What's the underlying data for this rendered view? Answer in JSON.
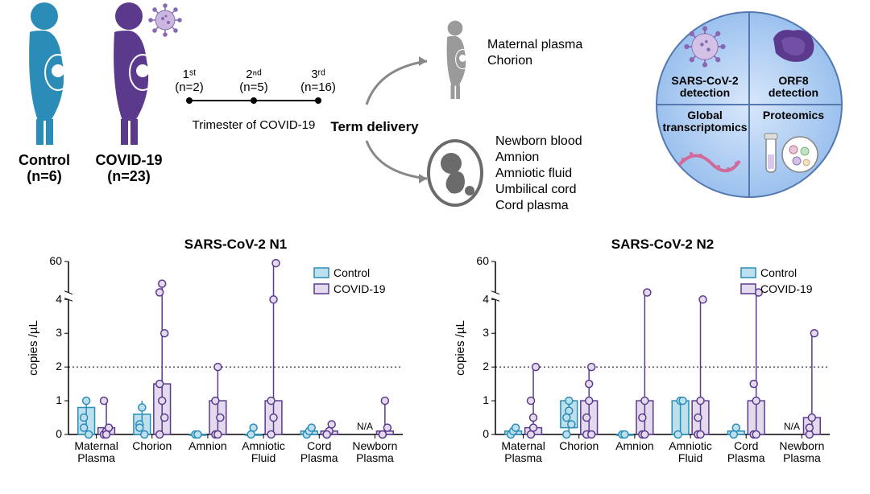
{
  "groups": {
    "control": {
      "label": "Control",
      "n": "(n=6)",
      "color": "#2b8db7"
    },
    "covid": {
      "label": "COVID-19",
      "n": "(n=23)",
      "color": "#5b3a8e"
    }
  },
  "timeline": {
    "label": "Trimester of COVID-19",
    "points": [
      {
        "top": "1ˢᵗ",
        "n": "(n=2)"
      },
      {
        "top": "2ⁿᵈ",
        "n": "(n=5)"
      },
      {
        "top": "3ʳᵈ",
        "n": "(n=16)"
      }
    ]
  },
  "term_delivery": "Term delivery",
  "maternal_list": [
    "Maternal plasma",
    "Chorion"
  ],
  "fetal_list": [
    "Newborn blood",
    "Amnion",
    "Amniotic fluid",
    "Umbilical cord",
    "Cord plasma"
  ],
  "quadrant": {
    "tl": "SARS-CoV-2\ndetection",
    "tr": "ORF8\ndetection",
    "bl": "Global\ntranscriptomics",
    "br": "Proteomics",
    "bg": "#c3d9f7",
    "bg2": "#a7c8f2",
    "stroke": "#5578b0"
  },
  "charts": {
    "ylabel": "copies /µL",
    "ytick_vals": [
      0,
      1,
      2,
      3,
      4
    ],
    "ytick_break": [
      4,
      60
    ],
    "threshold": 2,
    "categories": [
      "Maternal\nPlasma",
      "Chorion",
      "Amnion",
      "Amniotic\nFluid",
      "Cord\nPlasma",
      "Newborn\nPlasma"
    ],
    "legend": {
      "control": "Control",
      "covid": "COVID-19"
    },
    "control_fill": "#bde0ee",
    "control_stroke": "#2b8db7",
    "covid_fill": "#e3dbed",
    "covid_stroke": "#5b3a8e",
    "n1": {
      "title": "SARS-CoV-2 N1",
      "na_index": 5,
      "series": [
        {
          "group": "control",
          "box": [
            0,
            0.8
          ],
          "whisker": [
            0,
            1
          ],
          "points": [
            0.5,
            1,
            0,
            0.2
          ]
        },
        {
          "group": "covid",
          "box": [
            0,
            0.2
          ],
          "whisker": [
            0,
            1
          ],
          "points": [
            0,
            0.1,
            0.2,
            1,
            0
          ]
        },
        {
          "group": "control",
          "box": [
            0,
            0.6
          ],
          "whisker": [
            0,
            1
          ],
          "points": [
            0.3,
            0.8,
            0,
            0.2
          ]
        },
        {
          "group": "covid",
          "box": [
            0,
            1.5
          ],
          "whisker": [
            0,
            20
          ],
          "points": [
            0,
            1,
            3,
            4.5,
            20,
            0.5,
            1.5
          ]
        },
        {
          "group": "control",
          "box": [
            0,
            0
          ],
          "whisker": [
            0,
            0
          ],
          "points": [
            0,
            0
          ]
        },
        {
          "group": "covid",
          "box": [
            0,
            1
          ],
          "whisker": [
            0,
            2
          ],
          "points": [
            0,
            2,
            0.5,
            1,
            0
          ]
        },
        {
          "group": "control",
          "box": [
            0,
            0
          ],
          "whisker": [
            0,
            0
          ],
          "points": [
            0,
            0.2
          ]
        },
        {
          "group": "covid",
          "box": [
            0,
            1
          ],
          "whisker": [
            0,
            57
          ],
          "points": [
            0,
            4,
            57,
            1,
            0.5
          ]
        },
        {
          "group": "control",
          "box": [
            0,
            0.1
          ],
          "whisker": [
            0,
            0.2
          ],
          "points": [
            0,
            0.1,
            0.2
          ]
        },
        {
          "group": "covid",
          "box": [
            0,
            0.1
          ],
          "whisker": [
            0,
            0.3
          ],
          "points": [
            0,
            0.1,
            0.3,
            0
          ]
        },
        {
          "group": "control",
          "box": null,
          "whisker": null,
          "points": []
        },
        {
          "group": "covid",
          "box": [
            0,
            0.1
          ],
          "whisker": [
            0,
            1
          ],
          "points": [
            0,
            1,
            0.2,
            0
          ]
        }
      ]
    },
    "n2": {
      "title": "SARS-CoV-2 N2",
      "na_index": 5,
      "series": [
        {
          "group": "control",
          "box": [
            0,
            0.1
          ],
          "whisker": [
            0,
            0.2
          ],
          "points": [
            0,
            0.1,
            0.2
          ]
        },
        {
          "group": "covid",
          "box": [
            0,
            0.2
          ],
          "whisker": [
            0,
            2
          ],
          "points": [
            0,
            0.5,
            2,
            1,
            0.2
          ]
        },
        {
          "group": "control",
          "box": [
            0.2,
            1
          ],
          "whisker": [
            0,
            1
          ],
          "points": [
            0.5,
            1,
            0.3,
            0,
            0.7
          ]
        },
        {
          "group": "covid",
          "box": [
            0,
            1
          ],
          "whisker": [
            0,
            2
          ],
          "points": [
            0,
            1,
            2,
            0.5,
            1.5,
            0
          ]
        },
        {
          "group": "control",
          "box": [
            0,
            0
          ],
          "whisker": [
            0,
            0
          ],
          "points": [
            0,
            0
          ]
        },
        {
          "group": "covid",
          "box": [
            0,
            1
          ],
          "whisker": [
            0,
            4.3
          ],
          "points": [
            0,
            1,
            4.3,
            0.5,
            0
          ]
        },
        {
          "group": "control",
          "box": [
            0,
            1
          ],
          "whisker": [
            0,
            1
          ],
          "points": [
            0,
            1,
            1
          ]
        },
        {
          "group": "covid",
          "box": [
            0,
            1
          ],
          "whisker": [
            0,
            4
          ],
          "points": [
            0,
            1,
            4,
            0.5,
            0
          ]
        },
        {
          "group": "control",
          "box": [
            0,
            0.1
          ],
          "whisker": [
            0,
            0.2
          ],
          "points": [
            0,
            0.2
          ]
        },
        {
          "group": "covid",
          "box": [
            0,
            1
          ],
          "whisker": [
            0,
            4.3
          ],
          "points": [
            0,
            1,
            4.3,
            1.5,
            0
          ]
        },
        {
          "group": "control",
          "box": null,
          "whisker": null,
          "points": []
        },
        {
          "group": "covid",
          "box": [
            0,
            0.5
          ],
          "whisker": [
            0,
            3
          ],
          "points": [
            0,
            0.5,
            3,
            0.2
          ]
        }
      ]
    }
  }
}
